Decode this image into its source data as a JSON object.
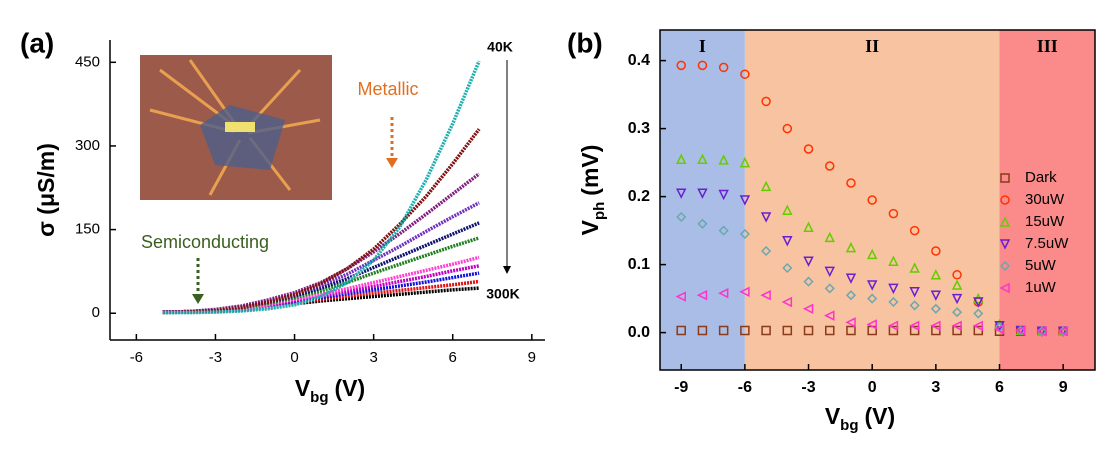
{
  "chart_data": [
    {
      "type": "line",
      "panel_label": "(a)",
      "y_label": "σ (μS/m)",
      "x_label": "V",
      "x_label_sub": "bg",
      "x_label_unit": "(V)",
      "annotations": [
        "Metallic",
        "Semiconducting",
        "40K",
        "300K"
      ],
      "x": [
        -5,
        -4,
        -3,
        -2,
        -1,
        0,
        1,
        2,
        3,
        4,
        5,
        6,
        7
      ],
      "xlim": [
        -7,
        9.5
      ],
      "xticks": [
        -6,
        -3,
        0,
        3,
        6,
        9
      ],
      "ylim": [
        -48,
        490
      ],
      "yticks": [
        0,
        150,
        300,
        450
      ],
      "series": [
        {
          "color": "#000000",
          "values": [
            2,
            2,
            3,
            5,
            10,
            17,
            22,
            26,
            30,
            34,
            38,
            42,
            45
          ]
        },
        {
          "color": "#e01010",
          "values": [
            2,
            2,
            3,
            6,
            11,
            19,
            25,
            30,
            36,
            41,
            46,
            51,
            57
          ]
        },
        {
          "color": "#1010e0",
          "values": [
            2,
            2,
            4,
            7,
            13,
            21,
            28,
            35,
            42,
            49,
            56,
            64,
            72
          ]
        },
        {
          "color": "#c000c0",
          "values": [
            2,
            3,
            4,
            8,
            14,
            23,
            31,
            39,
            48,
            57,
            66,
            76,
            85
          ]
        },
        {
          "color": "#ff40d0",
          "values": [
            2,
            3,
            5,
            9,
            16,
            25,
            34,
            44,
            55,
            66,
            77,
            88,
            100
          ]
        },
        {
          "color": "#208020",
          "values": [
            2,
            3,
            5,
            10,
            18,
            28,
            40,
            55,
            72,
            88,
            104,
            120,
            135
          ]
        },
        {
          "color": "#101070",
          "values": [
            2,
            3,
            6,
            11,
            20,
            31,
            45,
            62,
            82,
            102,
            122,
            142,
            162
          ]
        },
        {
          "color": "#7030c0",
          "values": [
            2,
            3,
            6,
            12,
            22,
            34,
            50,
            70,
            95,
            120,
            147,
            173,
            198
          ]
        },
        {
          "color": "#802080",
          "values": [
            2,
            3,
            7,
            13,
            24,
            37,
            55,
            80,
            110,
            143,
            178,
            214,
            250
          ]
        },
        {
          "color": "#801010",
          "values": [
            1,
            2,
            5,
            10,
            20,
            33,
            53,
            80,
            115,
            160,
            210,
            268,
            330
          ]
        },
        {
          "color": "#20b0b0",
          "values": [
            1,
            1,
            2,
            4,
            8,
            15,
            30,
            55,
            95,
            155,
            240,
            340,
            452
          ]
        }
      ]
    },
    {
      "type": "scatter",
      "panel_label": "(b)",
      "y_label": "V",
      "y_label_sub": "ph",
      "y_label_unit": "(mV)",
      "x_label": "V",
      "x_label_sub": "bg",
      "x_label_unit": "(V)",
      "x": [
        -9,
        -8,
        -7,
        -6,
        -5,
        -4,
        -3,
        -2,
        -1,
        0,
        1,
        2,
        3,
        4,
        5,
        6,
        7,
        8,
        9
      ],
      "xlim": [
        -10,
        10.5
      ],
      "xticks": [
        -9,
        -6,
        -3,
        0,
        3,
        6,
        9
      ],
      "ylim": [
        -0.055,
        0.445
      ],
      "yticks": [
        {
          "value": 0,
          "label": "0.0"
        },
        0.1,
        0.2,
        0.3,
        0.4
      ],
      "legend": "right",
      "regions": [
        {
          "label": "I",
          "from": -10,
          "to": -6,
          "color": "#a9bde6"
        },
        {
          "label": "II",
          "from": -6,
          "to": 6,
          "color": "#f7c3a0"
        },
        {
          "label": "III",
          "from": 6,
          "to": 10.5,
          "color": "#fb8b8b"
        }
      ],
      "series": [
        {
          "name": "Dark",
          "color": "#8b3a1a",
          "marker": "square",
          "values": [
            0.003,
            0.003,
            0.003,
            0.003,
            0.003,
            0.003,
            0.003,
            0.003,
            0.003,
            0.003,
            0.003,
            0.003,
            0.003,
            0.003,
            0.003,
            0.002,
            0.002,
            0.002,
            0.002
          ]
        },
        {
          "name": "30uW",
          "color": "#ff3300",
          "marker": "circle",
          "values": [
            0.393,
            0.393,
            0.39,
            0.38,
            0.34,
            0.3,
            0.27,
            0.245,
            0.22,
            0.195,
            0.175,
            0.15,
            0.12,
            0.085,
            0.045,
            0.01,
            0.003,
            0.002,
            0.002
          ]
        },
        {
          "name": "15uW",
          "color": "#66cc00",
          "marker": "triangle-up",
          "values": [
            0.255,
            0.255,
            0.254,
            0.25,
            0.215,
            0.18,
            0.155,
            0.14,
            0.125,
            0.115,
            0.105,
            0.095,
            0.085,
            0.07,
            0.05,
            0.012,
            0.003,
            0.002,
            0.002
          ]
        },
        {
          "name": "7.5uW",
          "color": "#6a1fd0",
          "marker": "triangle-down",
          "values": [
            0.205,
            0.205,
            0.203,
            0.195,
            0.17,
            0.135,
            0.105,
            0.09,
            0.08,
            0.07,
            0.065,
            0.06,
            0.055,
            0.05,
            0.045,
            0.01,
            0.003,
            0.002,
            0.002
          ]
        },
        {
          "name": "5uW",
          "color": "#6aa8b0",
          "marker": "diamond",
          "values": [
            0.17,
            0.16,
            0.15,
            0.145,
            0.12,
            0.095,
            0.075,
            0.065,
            0.055,
            0.05,
            0.045,
            0.04,
            0.035,
            0.03,
            0.028,
            0.008,
            0.003,
            0.002,
            0.002
          ]
        },
        {
          "name": "1uW",
          "color": "#ff33cc",
          "marker": "triangle-left",
          "values": [
            0.053,
            0.055,
            0.058,
            0.06,
            0.055,
            0.045,
            0.035,
            0.025,
            0.015,
            0.012,
            0.01,
            0.01,
            0.01,
            0.01,
            0.01,
            0.005,
            0.003,
            0.002,
            0.002
          ]
        }
      ]
    }
  ]
}
